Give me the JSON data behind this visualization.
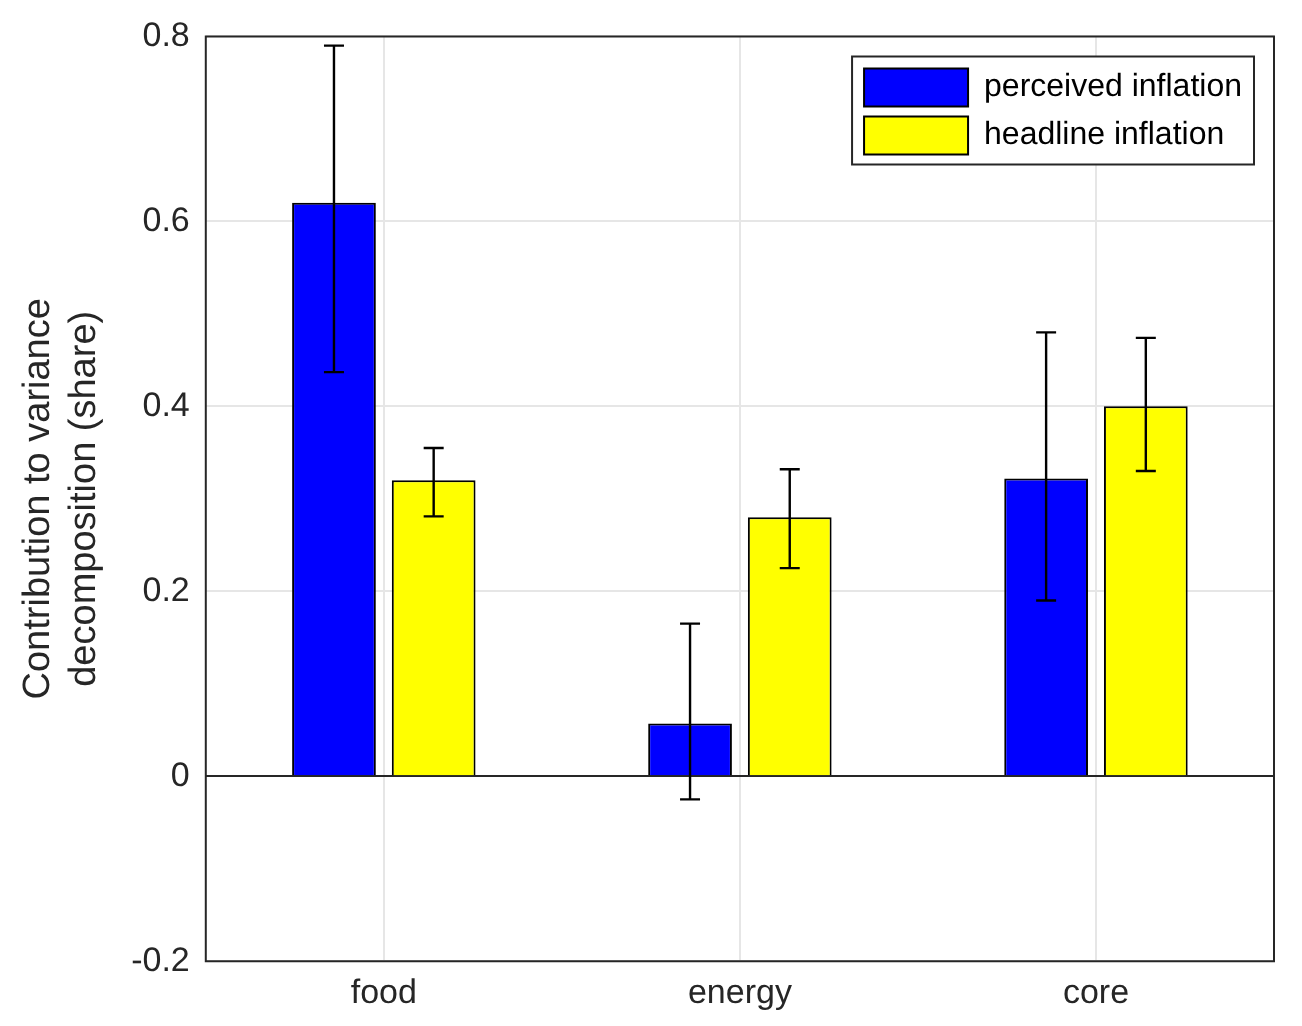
{
  "chart_data": {
    "type": "bar",
    "ylabel": "Contribution to variance decomposition (share)",
    "categories": [
      "food",
      "energy",
      "core"
    ],
    "series": [
      {
        "name": "perceived inflation",
        "color": "#0000ff",
        "values": [
          0.62,
          0.057,
          0.322
        ],
        "errors": [
          [
            0.437,
            0.79
          ],
          [
            -0.025,
            0.165
          ],
          [
            0.19,
            0.48
          ]
        ]
      },
      {
        "name": "headline inflation",
        "color": "#ffff00",
        "values": [
          0.32,
          0.28,
          0.4
        ],
        "errors": [
          [
            0.281,
            0.355
          ],
          [
            0.225,
            0.332
          ],
          [
            0.33,
            0.474
          ]
        ]
      }
    ],
    "ylim": [
      -0.2,
      0.8
    ],
    "yticks": [
      -0.2,
      0,
      0.2,
      0.4,
      0.6,
      0.8
    ],
    "grid": true,
    "legend": "top right"
  }
}
